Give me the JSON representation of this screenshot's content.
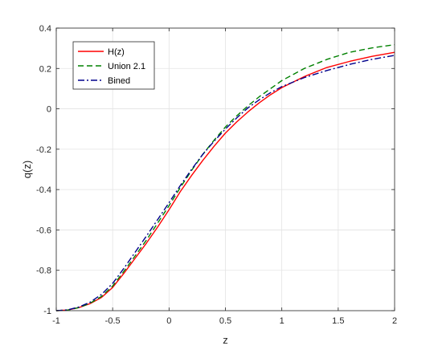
{
  "chart_data": {
    "type": "line",
    "title": "",
    "xlabel": "z",
    "ylabel": "q(z)",
    "xlim": [
      -1,
      2
    ],
    "ylim": [
      -1,
      0.4
    ],
    "grid": true,
    "legend_position": "top-left",
    "x_ticks": [
      "-1",
      "-0.5",
      "0",
      "0.5",
      "1",
      "1.5",
      "2"
    ],
    "y_ticks": [
      "-1",
      "-0.8",
      "-0.6",
      "-0.4",
      "-0.2",
      "0",
      "0.2",
      "0.4"
    ],
    "series": [
      {
        "name": "H(z)",
        "color": "#ff0000",
        "dash": "solid",
        "x": [
          -1,
          -0.9,
          -0.8,
          -0.7,
          -0.6,
          -0.5,
          -0.4,
          -0.3,
          -0.2,
          -0.1,
          0,
          0.1,
          0.2,
          0.3,
          0.4,
          0.5,
          0.6,
          0.7,
          0.8,
          0.9,
          1.0,
          1.2,
          1.4,
          1.6,
          1.8,
          2.0
        ],
        "y": [
          -1.0,
          -0.997,
          -0.985,
          -0.965,
          -0.935,
          -0.885,
          -0.815,
          -0.74,
          -0.665,
          -0.585,
          -0.5,
          -0.41,
          -0.33,
          -0.255,
          -0.185,
          -0.12,
          -0.065,
          -0.015,
          0.03,
          0.07,
          0.105,
          0.16,
          0.205,
          0.235,
          0.26,
          0.28
        ]
      },
      {
        "name": "Union 2.1",
        "color": "#008000",
        "dash": "dashed",
        "x": [
          -1,
          -0.9,
          -0.8,
          -0.7,
          -0.6,
          -0.5,
          -0.4,
          -0.3,
          -0.2,
          -0.1,
          0,
          0.1,
          0.2,
          0.3,
          0.4,
          0.5,
          0.6,
          0.7,
          0.8,
          0.9,
          1.0,
          1.2,
          1.4,
          1.6,
          1.8,
          2.0
        ],
        "y": [
          -1.0,
          -0.997,
          -0.985,
          -0.963,
          -0.93,
          -0.878,
          -0.805,
          -0.728,
          -0.65,
          -0.565,
          -0.48,
          -0.39,
          -0.305,
          -0.225,
          -0.155,
          -0.09,
          -0.035,
          0.015,
          0.06,
          0.1,
          0.14,
          0.2,
          0.245,
          0.28,
          0.302,
          0.318
        ]
      },
      {
        "name": "Bined",
        "color": "#00008b",
        "dash": "dashdot",
        "x": [
          -1,
          -0.9,
          -0.8,
          -0.7,
          -0.6,
          -0.5,
          -0.4,
          -0.3,
          -0.2,
          -0.1,
          0,
          0.1,
          0.2,
          0.3,
          0.4,
          0.5,
          0.6,
          0.7,
          0.8,
          0.9,
          1.0,
          1.2,
          1.4,
          1.6,
          1.8,
          2.0
        ],
        "y": [
          -1.0,
          -0.996,
          -0.982,
          -0.958,
          -0.92,
          -0.865,
          -0.79,
          -0.71,
          -0.63,
          -0.548,
          -0.465,
          -0.38,
          -0.3,
          -0.225,
          -0.16,
          -0.1,
          -0.045,
          0.005,
          0.045,
          0.08,
          0.11,
          0.155,
          0.19,
          0.22,
          0.245,
          0.265
        ]
      }
    ]
  }
}
